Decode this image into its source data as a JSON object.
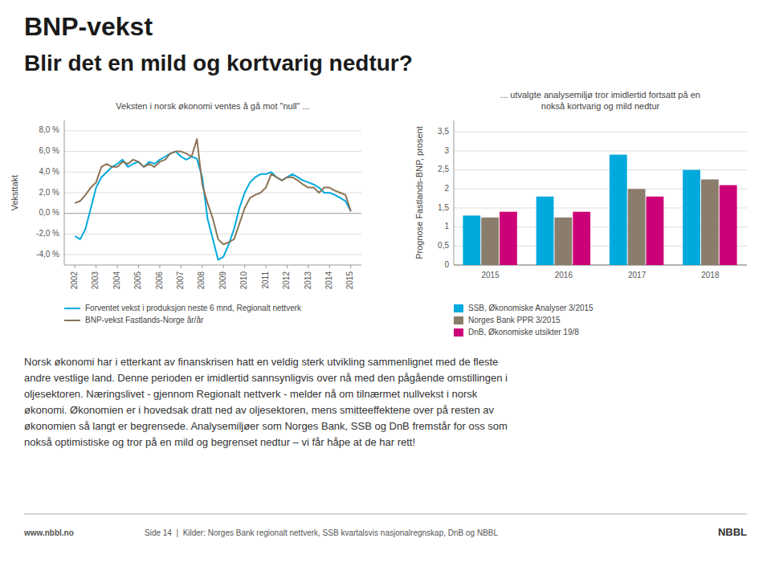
{
  "title": "BNP-vekst",
  "subtitle": "Blir det en mild og kortvarig nedtur?",
  "body_text": "Norsk økonomi har i etterkant av finanskrisen hatt en veldig sterk utvikling sammenlignet med de fleste\nandre vestlige land. Denne perioden er imidlertid sannsynligvis over nå med den pågående omstillingen i\noljesektoren. Næringslivet - gjennom Regionalt nettverk - melder nå om tilnærmet nullvekst i norsk\nøkonomi. Økonomien er i hovedsak dratt ned av oljesektoren, mens smitteeffektene over på resten av\nøkonomien så langt er begrensede. Analysemiljøer som Norges Bank, SSB og DnB fremstår for oss som\nnokså optimistiske og tror på en mild og begrenset nedtur – vi får håpe at de har rett!",
  "footer": [
    "www.nbbl.no",
    "Side 14  |  Kilder: Norges Bank regionalt nettverk, SSB kvartalsvis nasjonalregnskap, DnB og NBBL",
    "NBBL"
  ],
  "chart_data": [
    {
      "type": "line",
      "title": "Veksten i norsk økonomi ventes å gå mot \"null\" ...",
      "y_label": "Veksttakt",
      "x": [
        2002,
        2002.25,
        2002.5,
        2002.75,
        2003,
        2003.25,
        2003.5,
        2003.75,
        2004,
        2004.25,
        2004.5,
        2004.75,
        2005,
        2005.25,
        2005.5,
        2005.75,
        2006,
        2006.25,
        2006.5,
        2006.75,
        2007,
        2007.25,
        2007.5,
        2007.75,
        2008,
        2008.25,
        2008.5,
        2008.75,
        2009,
        2009.25,
        2009.5,
        2009.75,
        2010,
        2010.25,
        2010.5,
        2010.75,
        2011,
        2011.25,
        2011.5,
        2011.75,
        2012,
        2012.25,
        2012.5,
        2012.75,
        2013,
        2013.25,
        2013.5,
        2013.75,
        2014,
        2014.25,
        2014.5,
        2014.75,
        2015
      ],
      "series": [
        {
          "name": "Forventet vekst i produksjon neste 6 mnd, Regionalt nettverk",
          "color": "#00aadd",
          "values": [
            -2.2,
            -2.5,
            -1.5,
            0.5,
            2.5,
            3.5,
            4.0,
            4.5,
            4.8,
            5.2,
            4.5,
            4.8,
            5.0,
            4.5,
            5.0,
            4.8,
            5.2,
            5.5,
            5.8,
            6.0,
            5.5,
            5.2,
            5.5,
            5.3,
            3.5,
            -0.5,
            -2.5,
            -4.5,
            -4.2,
            -3.0,
            -1.5,
            0.5,
            2.0,
            3.0,
            3.5,
            3.8,
            3.8,
            4.0,
            3.5,
            3.2,
            3.5,
            3.8,
            3.5,
            3.2,
            3.0,
            2.8,
            2.5,
            2.0,
            2.0,
            1.8,
            1.5,
            1.2,
            0.2
          ]
        },
        {
          "name": "BNP-vekst Fastlands-Norge år/år",
          "color": "#8b7355",
          "values": [
            1.0,
            1.2,
            1.8,
            2.5,
            3.0,
            4.5,
            4.8,
            4.5,
            4.5,
            5.0,
            4.8,
            5.2,
            5.0,
            4.5,
            4.8,
            4.5,
            5.0,
            5.2,
            5.8,
            6.0,
            6.0,
            5.8,
            5.5,
            7.2,
            2.8,
            1.0,
            -0.5,
            -2.5,
            -3.0,
            -2.8,
            -2.5,
            -1.0,
            0.5,
            1.5,
            1.8,
            2.0,
            2.5,
            3.8,
            3.5,
            3.2,
            3.5,
            3.5,
            3.2,
            2.8,
            2.5,
            2.5,
            2.0,
            2.5,
            2.5,
            2.2,
            2.0,
            1.8,
            0.2
          ]
        }
      ],
      "xlim": [
        2001.5,
        2015.5
      ],
      "xticks": [
        2002,
        2003,
        2004,
        2005,
        2006,
        2007,
        2008,
        2009,
        2010,
        2011,
        2012,
        2013,
        2014,
        2015
      ],
      "ylim": [
        -5,
        9
      ],
      "yticks": [
        {
          "value": -4,
          "label": "-4,0 %"
        },
        {
          "value": -2,
          "label": "-2,0 %"
        },
        {
          "value": 0,
          "label": "0,0 %"
        },
        {
          "value": 2,
          "label": "2,0 %"
        },
        {
          "value": 4,
          "label": "4,0 %"
        },
        {
          "value": 6,
          "label": "6,0 %"
        },
        {
          "value": 8,
          "label": "8,0 %"
        }
      ],
      "grid": true,
      "legend": "bottom"
    },
    {
      "type": "bar",
      "title": "... utvalgte analysemiljø tror imidlertid fortsatt på en\nnokså kortvarig og mild nedtur",
      "y_label": "Prognose Fastlands-BNP, prosent",
      "categories": [
        "2015",
        "2016",
        "2017",
        "2018"
      ],
      "series": [
        {
          "name": "SSB, Økonomiske Analyser 3/2015",
          "color": "#00aadd",
          "values": [
            1.3,
            1.8,
            2.9,
            2.5
          ]
        },
        {
          "name": "Norges Bank PPR 3/2015",
          "color": "#8b7d6b",
          "values": [
            1.25,
            1.25,
            2.0,
            2.25
          ]
        },
        {
          "name": "DnB, Økonomiske utsikter 19/8",
          "color": "#cc0077",
          "values": [
            1.4,
            1.4,
            1.8,
            2.1
          ]
        }
      ],
      "ylim": [
        0,
        3.8
      ],
      "yticks": [
        0,
        {
          "value": 0.5,
          "label": "0,5"
        },
        1,
        {
          "value": 1.5,
          "label": "1,5"
        },
        2,
        {
          "value": 2.5,
          "label": "2,5"
        },
        3,
        {
          "value": 3.5,
          "label": "3,5"
        }
      ],
      "grid": true,
      "legend": "bottom"
    }
  ]
}
